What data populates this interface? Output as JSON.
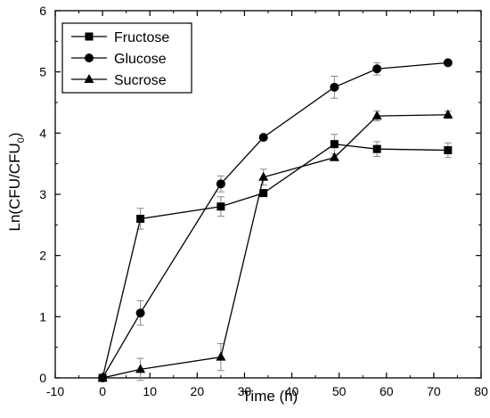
{
  "chart_data": {
    "type": "line",
    "title": "",
    "xlabel": "Time (h)",
    "ylabel_main": "Ln(CFU/CFU",
    "ylabel_sub": "0",
    "ylabel_close": ")",
    "xlim": [
      -10,
      80
    ],
    "ylim": [
      0,
      6
    ],
    "xticks": [
      -10,
      0,
      10,
      20,
      30,
      40,
      50,
      60,
      70,
      80
    ],
    "yticks": [
      0,
      1,
      2,
      3,
      4,
      5,
      6
    ],
    "grid": false,
    "legend_position": "top-left",
    "series": [
      {
        "name": "Fructose",
        "marker": "square",
        "x": [
          0,
          8,
          25,
          34,
          49,
          58,
          73
        ],
        "y": [
          0.0,
          2.6,
          2.8,
          3.02,
          3.82,
          3.74,
          3.72
        ],
        "err": [
          0.0,
          0.17,
          0.16,
          0.0,
          0.16,
          0.12,
          0.12
        ]
      },
      {
        "name": "Glucose",
        "marker": "circle",
        "x": [
          0,
          8,
          25,
          34,
          49,
          58,
          73
        ],
        "y": [
          0.0,
          1.06,
          3.17,
          3.93,
          4.75,
          5.05,
          5.15
        ],
        "err": [
          0.0,
          0.2,
          0.13,
          0.0,
          0.18,
          0.1,
          0.0
        ]
      },
      {
        "name": "Sucrose",
        "marker": "triangle",
        "x": [
          0,
          8,
          25,
          34,
          49,
          58,
          73
        ],
        "y": [
          0.0,
          0.14,
          0.34,
          3.28,
          3.6,
          4.28,
          4.3
        ],
        "err": [
          0.0,
          0.18,
          0.22,
          0.13,
          0.0,
          0.08,
          0.06
        ]
      }
    ]
  },
  "colors": {
    "series": "#000000",
    "errorbar": "#888888",
    "axis": "#000000"
  }
}
